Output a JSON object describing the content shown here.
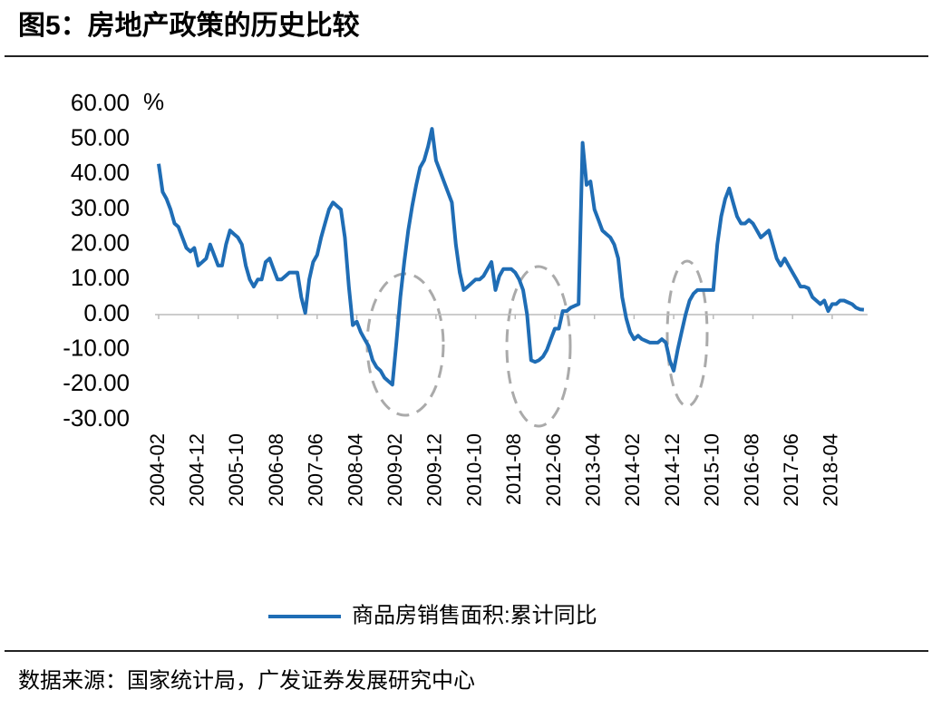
{
  "chart_data": {
    "type": "line",
    "title": "图5：房地产政策的历史比较",
    "y_unit": "%",
    "source": "数据来源：国家统计局，广发证券发展研究中心",
    "categories": [
      "2004-02",
      null,
      null,
      null,
      null,
      null,
      null,
      null,
      null,
      null,
      "2004-12",
      null,
      null,
      null,
      null,
      null,
      null,
      null,
      null,
      null,
      "2005-10",
      null,
      null,
      null,
      null,
      null,
      null,
      null,
      null,
      null,
      "2006-08",
      null,
      null,
      null,
      null,
      null,
      null,
      null,
      null,
      null,
      "2007-06",
      null,
      null,
      null,
      null,
      null,
      null,
      null,
      null,
      null,
      "2008-04",
      null,
      null,
      null,
      null,
      null,
      null,
      null,
      null,
      null,
      "2009-02",
      null,
      null,
      null,
      null,
      null,
      null,
      null,
      null,
      null,
      "2009-12",
      null,
      null,
      null,
      null,
      null,
      null,
      null,
      null,
      null,
      "2010-10",
      null,
      null,
      null,
      null,
      null,
      null,
      null,
      null,
      null,
      "2011-08",
      null,
      null,
      null,
      null,
      null,
      null,
      null,
      null,
      null,
      "2012-06",
      null,
      null,
      null,
      null,
      null,
      null,
      null,
      null,
      null,
      "2013-04",
      null,
      null,
      null,
      null,
      null,
      null,
      null,
      null,
      null,
      "2014-02",
      null,
      null,
      null,
      null,
      null,
      null,
      null,
      null,
      null,
      "2014-12",
      null,
      null,
      null,
      null,
      null,
      null,
      null,
      null,
      null,
      "2015-10",
      null,
      null,
      null,
      null,
      null,
      null,
      null,
      null,
      null,
      "2016-08",
      null,
      null,
      null,
      null,
      null,
      null,
      null,
      null,
      null,
      "2017-06",
      null,
      null,
      null,
      null,
      null,
      null,
      null,
      null,
      null,
      "2018-04",
      null,
      null,
      null,
      null,
      null,
      null,
      null,
      null
    ],
    "series": [
      {
        "name": "商品房销售面积:累计同比",
        "color": "#1f6db5",
        "values": [
          43,
          35,
          33,
          30,
          26,
          25,
          22,
          19,
          18,
          19,
          14,
          15,
          16,
          20,
          17,
          14,
          14,
          20,
          24,
          23,
          22,
          20,
          14,
          10,
          8,
          10,
          10,
          15,
          16,
          13,
          10,
          10,
          11,
          12,
          12,
          12,
          5,
          0.5,
          10,
          15,
          17,
          22,
          26,
          30,
          32,
          31,
          30,
          22,
          8,
          -3,
          -2,
          -5,
          -7,
          -9,
          -13,
          -15,
          -16,
          -18,
          -19,
          -20,
          -8,
          5,
          15,
          24,
          31,
          37,
          42,
          44,
          48,
          53,
          44,
          41,
          38,
          35,
          32,
          20,
          12,
          7,
          8,
          9,
          10,
          10,
          11,
          13,
          15,
          7,
          11,
          13,
          13,
          13,
          12,
          10,
          7,
          0,
          -13,
          -13.5,
          -13,
          -12,
          -10,
          -7,
          -4,
          -4,
          1,
          1,
          2,
          2.5,
          3,
          49,
          37,
          38,
          30,
          27,
          24,
          23,
          22,
          20,
          16,
          5,
          -1,
          -5,
          -7,
          -6,
          -7,
          -7.5,
          -8,
          -8,
          -8,
          -7,
          -8,
          -13,
          -16,
          -10,
          -5,
          0,
          4,
          6,
          7,
          7,
          7,
          7,
          7,
          20,
          28,
          33,
          36,
          32,
          28,
          26,
          26,
          27,
          26,
          24,
          22,
          23,
          24,
          20,
          16,
          14,
          16,
          14,
          12,
          10,
          8,
          8,
          7.5,
          5,
          4,
          3,
          4,
          1,
          3,
          3,
          4,
          4,
          3.5,
          3,
          2,
          1.5,
          1.4
        ]
      }
    ],
    "ylim": [
      -30,
      60
    ],
    "yticks": [
      {
        "value": -30,
        "label": "-30.00"
      },
      {
        "value": -20,
        "label": "-20.00"
      },
      {
        "value": -10,
        "label": "-10.00"
      },
      {
        "value": 0,
        "label": "0.00"
      },
      {
        "value": 10,
        "label": "10.00"
      },
      {
        "value": 20,
        "label": "20.00"
      },
      {
        "value": 30,
        "label": "30.00"
      },
      {
        "value": 40,
        "label": "40.00"
      },
      {
        "value": 50,
        "label": "50.00"
      },
      {
        "value": 60,
        "label": "60.00"
      }
    ],
    "grid": false
  }
}
